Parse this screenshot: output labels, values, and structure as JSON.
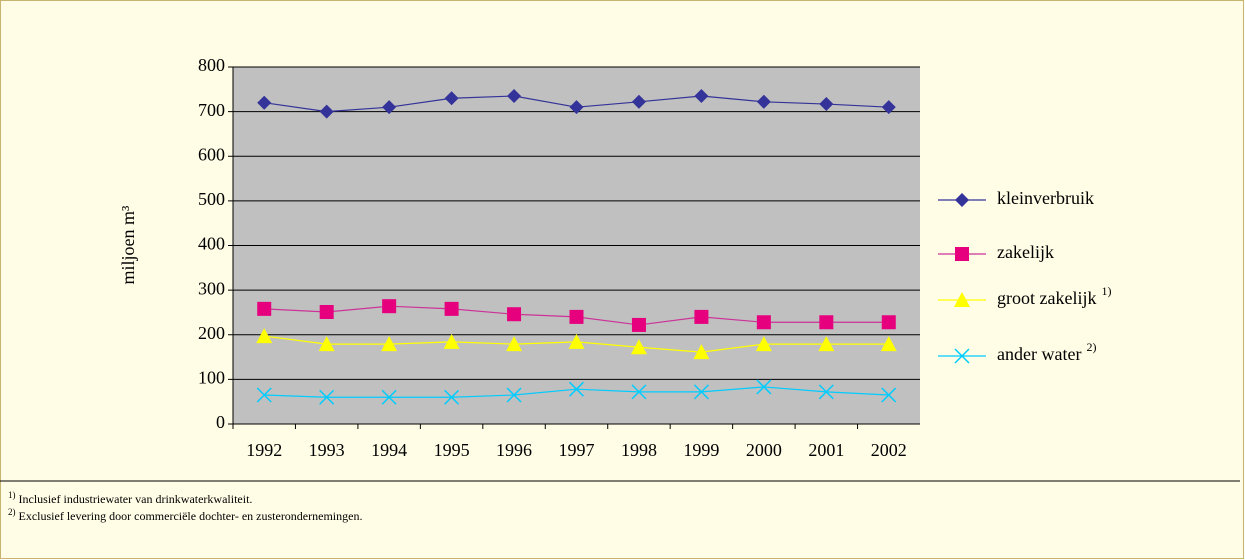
{
  "chart_data": {
    "type": "line",
    "y_label": "miljoen m³",
    "categories": [
      "1992",
      "1993",
      "1994",
      "1995",
      "1996",
      "1997",
      "1998",
      "1999",
      "2000",
      "2001",
      "2002"
    ],
    "series": [
      {
        "name": "kleinverbruik",
        "color": "#333399",
        "marker": "diamond",
        "values": [
          720,
          700,
          710,
          730,
          735,
          710,
          722,
          735,
          722,
          717,
          710
        ]
      },
      {
        "name": "zakelijk",
        "color": "#e6007e",
        "marker": "square",
        "values": [
          258,
          251,
          264,
          258,
          246,
          240,
          222,
          240,
          228,
          228,
          228
        ]
      },
      {
        "name": "groot zakelijk",
        "footnote_ref": "1)",
        "color": "#ffff00",
        "marker": "triangle",
        "values": [
          197,
          179,
          179,
          184,
          179,
          184,
          172,
          161,
          179,
          179,
          179
        ]
      },
      {
        "name": "ander water",
        "footnote_ref": "2)",
        "color": "#00ccff",
        "marker": "x",
        "values": [
          65,
          60,
          60,
          60,
          65,
          78,
          72,
          72,
          83,
          72,
          65
        ]
      }
    ],
    "ylim": [
      0,
      800
    ],
    "yticks": [
      0,
      100,
      200,
      300,
      400,
      500,
      600,
      700,
      800
    ],
    "grid": true,
    "plot_background": "#c0c0c0",
    "footnotes": [
      {
        "marker": "1)",
        "text": "Inclusief industriewater van drinkwaterkwaliteit."
      },
      {
        "marker": "2)",
        "text": "Exclusief levering door commerciële dochter- en zusterondernemingen."
      }
    ]
  }
}
